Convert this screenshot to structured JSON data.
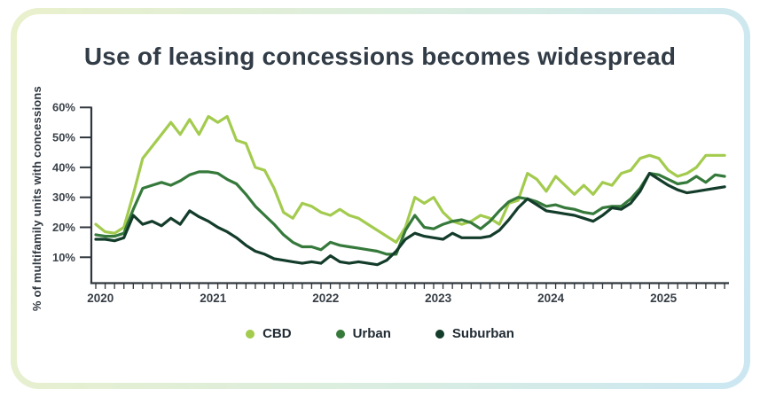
{
  "title": "Use of leasing concessions becomes widespread",
  "colors": {
    "axis": "#2f363c",
    "title_text": "#323c46",
    "tick_text": "#3b424a",
    "legend_text": "#212b33",
    "card_border_left": "#e9f0cc",
    "card_border_right": "#cbe7f2",
    "cbd_line": "#a3cb4e",
    "urban_line": "#35793b",
    "suburban_line": "#133c2b"
  },
  "chart_data": {
    "type": "line",
    "title": "Use of leasing concessions becomes widespread",
    "xlabel": "",
    "ylabel": "% of multifamily units with concessions",
    "ylim": [
      0,
      60
    ],
    "grid": false,
    "legend_position": "bottom",
    "x_start": "2020-01",
    "x_interval": "monthly",
    "ytick_values": [
      10,
      20,
      30,
      40,
      50,
      60
    ],
    "ytick_labels": [
      "10%",
      "20%",
      "30%",
      "40%",
      "50%",
      "60%"
    ],
    "year_labels": [
      "2020",
      "2021",
      "2022",
      "2023",
      "2024",
      "2025"
    ],
    "series": [
      {
        "name": "CBD",
        "color": "#a3cb4e",
        "values": [
          21,
          18.5,
          18,
          20,
          31,
          43,
          47,
          51,
          55,
          51,
          56,
          51,
          57,
          55,
          57,
          49,
          48,
          40,
          39,
          33,
          25,
          23,
          28,
          27,
          25,
          24,
          26,
          24,
          23,
          21,
          19,
          17,
          15,
          20,
          30,
          28,
          30,
          25,
          22,
          21,
          22,
          24,
          23,
          21,
          28,
          29,
          38,
          36,
          32,
          37,
          34,
          31,
          34,
          31,
          35,
          34,
          38,
          39,
          43,
          44,
          43,
          39,
          37,
          38,
          40,
          44,
          44,
          44
        ]
      },
      {
        "name": "Urban",
        "color": "#35793b",
        "values": [
          17.5,
          17,
          17,
          18,
          26,
          33,
          34,
          35,
          34,
          35.5,
          37.5,
          38.5,
          38.5,
          38,
          36,
          34.5,
          31,
          27,
          24,
          21,
          17.5,
          15,
          13.5,
          13.5,
          12.5,
          15,
          14,
          13.5,
          13,
          12.5,
          12,
          11,
          11,
          19,
          24,
          20,
          19.5,
          21,
          22,
          22.5,
          21.5,
          19.5,
          22,
          25.5,
          28.5,
          30,
          29.5,
          28.5,
          27,
          27.5,
          26.5,
          26,
          25,
          24.5,
          26.5,
          27,
          27,
          29.5,
          33,
          38,
          37.5,
          36,
          34.5,
          35,
          37,
          35,
          37.5,
          37
        ]
      },
      {
        "name": "Suburban",
        "color": "#133c2b",
        "values": [
          16,
          16,
          15.5,
          16.5,
          24,
          21,
          22,
          20.5,
          23,
          21,
          25.5,
          23.5,
          22,
          20,
          18.5,
          16.5,
          14,
          12,
          11,
          9.5,
          9,
          8.5,
          8,
          8.5,
          8,
          10.5,
          8.5,
          8,
          8.5,
          8,
          7.5,
          9,
          12,
          16,
          18,
          17,
          16.5,
          16,
          18,
          16.5,
          16.5,
          16.5,
          17,
          19,
          22.5,
          26.5,
          29.5,
          27.5,
          25.5,
          25,
          24.5,
          24,
          23,
          22,
          24,
          26.5,
          26,
          28,
          32,
          38,
          36,
          34,
          32.5,
          31.5,
          32,
          32.5,
          33,
          33.5
        ]
      }
    ]
  }
}
